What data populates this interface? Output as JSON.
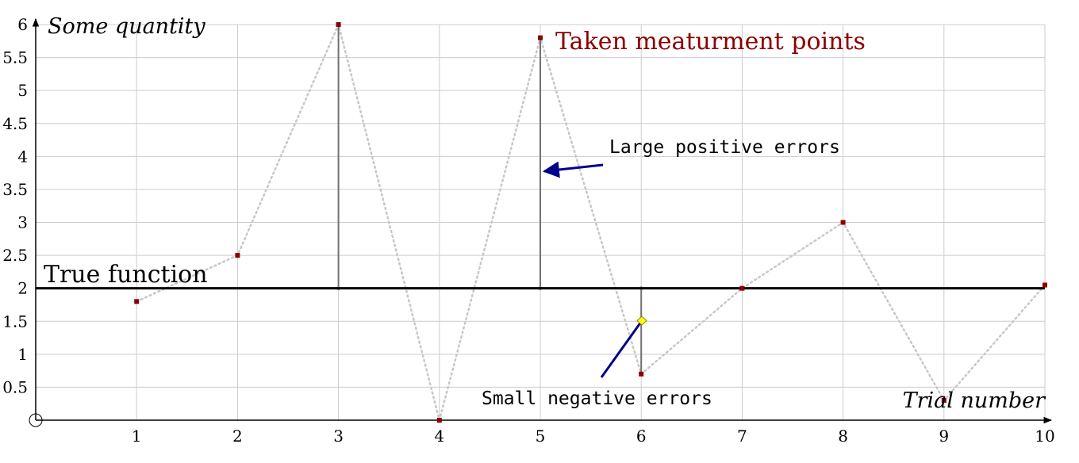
{
  "chart_data": {
    "type": "scatter",
    "xlabel": "Trial number",
    "ylabel": "Some quantity",
    "xlim": [
      0,
      10
    ],
    "ylim": [
      0,
      6
    ],
    "x_ticks": [
      "1",
      "2",
      "3",
      "4",
      "5",
      "6",
      "7",
      "8",
      "9",
      "10"
    ],
    "y_ticks": [
      "0.5",
      "1",
      "1.5",
      "2",
      "2.5",
      "3",
      "3.5",
      "4",
      "4.5",
      "5",
      "5.5",
      "6"
    ],
    "grid": true,
    "true_function": {
      "label": "True function",
      "y": 2
    },
    "series": [
      {
        "name": "Taken meaturment points",
        "x": [
          1,
          2,
          3,
          4,
          5,
          6,
          7,
          8,
          9,
          10
        ],
        "y": [
          1.8,
          2.5,
          6.0,
          0.0,
          5.8,
          0.7,
          2.0,
          3.0,
          0.3,
          2.05
        ]
      }
    ],
    "error_bars_at_x": [
      3,
      5,
      6
    ],
    "annotations": [
      {
        "text": "Large positive errors"
      },
      {
        "text": "Small negative errors"
      }
    ],
    "colors": {
      "points": "#8b0000",
      "series_line": "#c8c8c8",
      "true_function": "#000000",
      "error_lines": "#707070",
      "grid": "#cccccc",
      "arrow": "#00008b",
      "marker": "#ffff00"
    }
  }
}
